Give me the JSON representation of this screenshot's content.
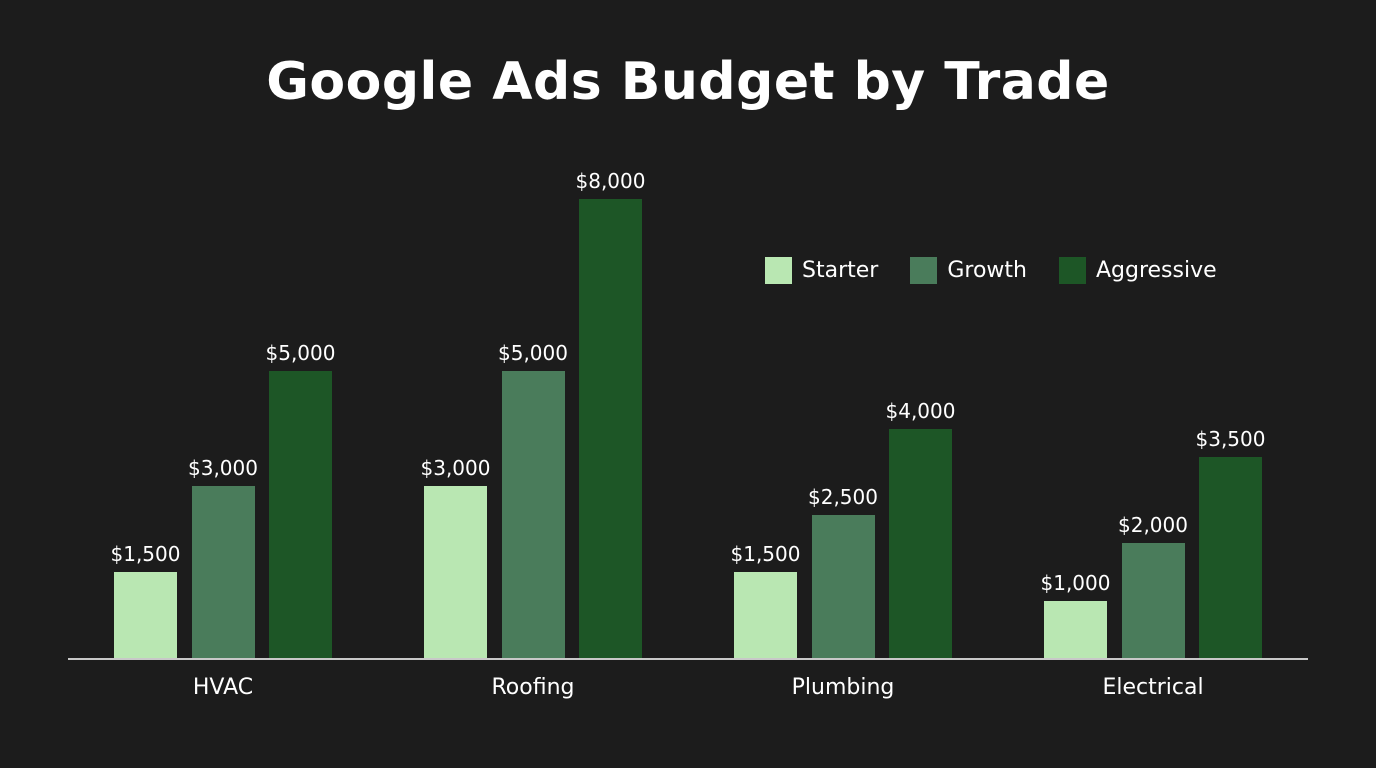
{
  "chart_data": {
    "type": "bar",
    "title": "Google Ads Budget by Trade",
    "xlabel": "",
    "ylabel": "",
    "categories": [
      "HVAC",
      "Roofing",
      "Plumbing",
      "Electrical"
    ],
    "series": [
      {
        "name": "Starter",
        "color": "#b9e7b2",
        "values": [
          1500,
          3000,
          1500,
          1000
        ],
        "labels": [
          "$1,500",
          "$3,000",
          "$1,500",
          "$1,000"
        ]
      },
      {
        "name": "Growth",
        "color": "#4a7c5b",
        "values": [
          3000,
          5000,
          2500,
          2000
        ],
        "labels": [
          "$3,000",
          "$5,000",
          "$2,500",
          "$2,000"
        ]
      },
      {
        "name": "Aggressive",
        "color": "#1d5626",
        "values": [
          5000,
          8000,
          4000,
          3500
        ],
        "labels": [
          "$5,000",
          "$8,000",
          "$4,000",
          "$3,500"
        ]
      }
    ],
    "ylim": [
      0,
      8000
    ],
    "grid": false,
    "legend_position": "upper right",
    "background": "#1c1c1c"
  }
}
